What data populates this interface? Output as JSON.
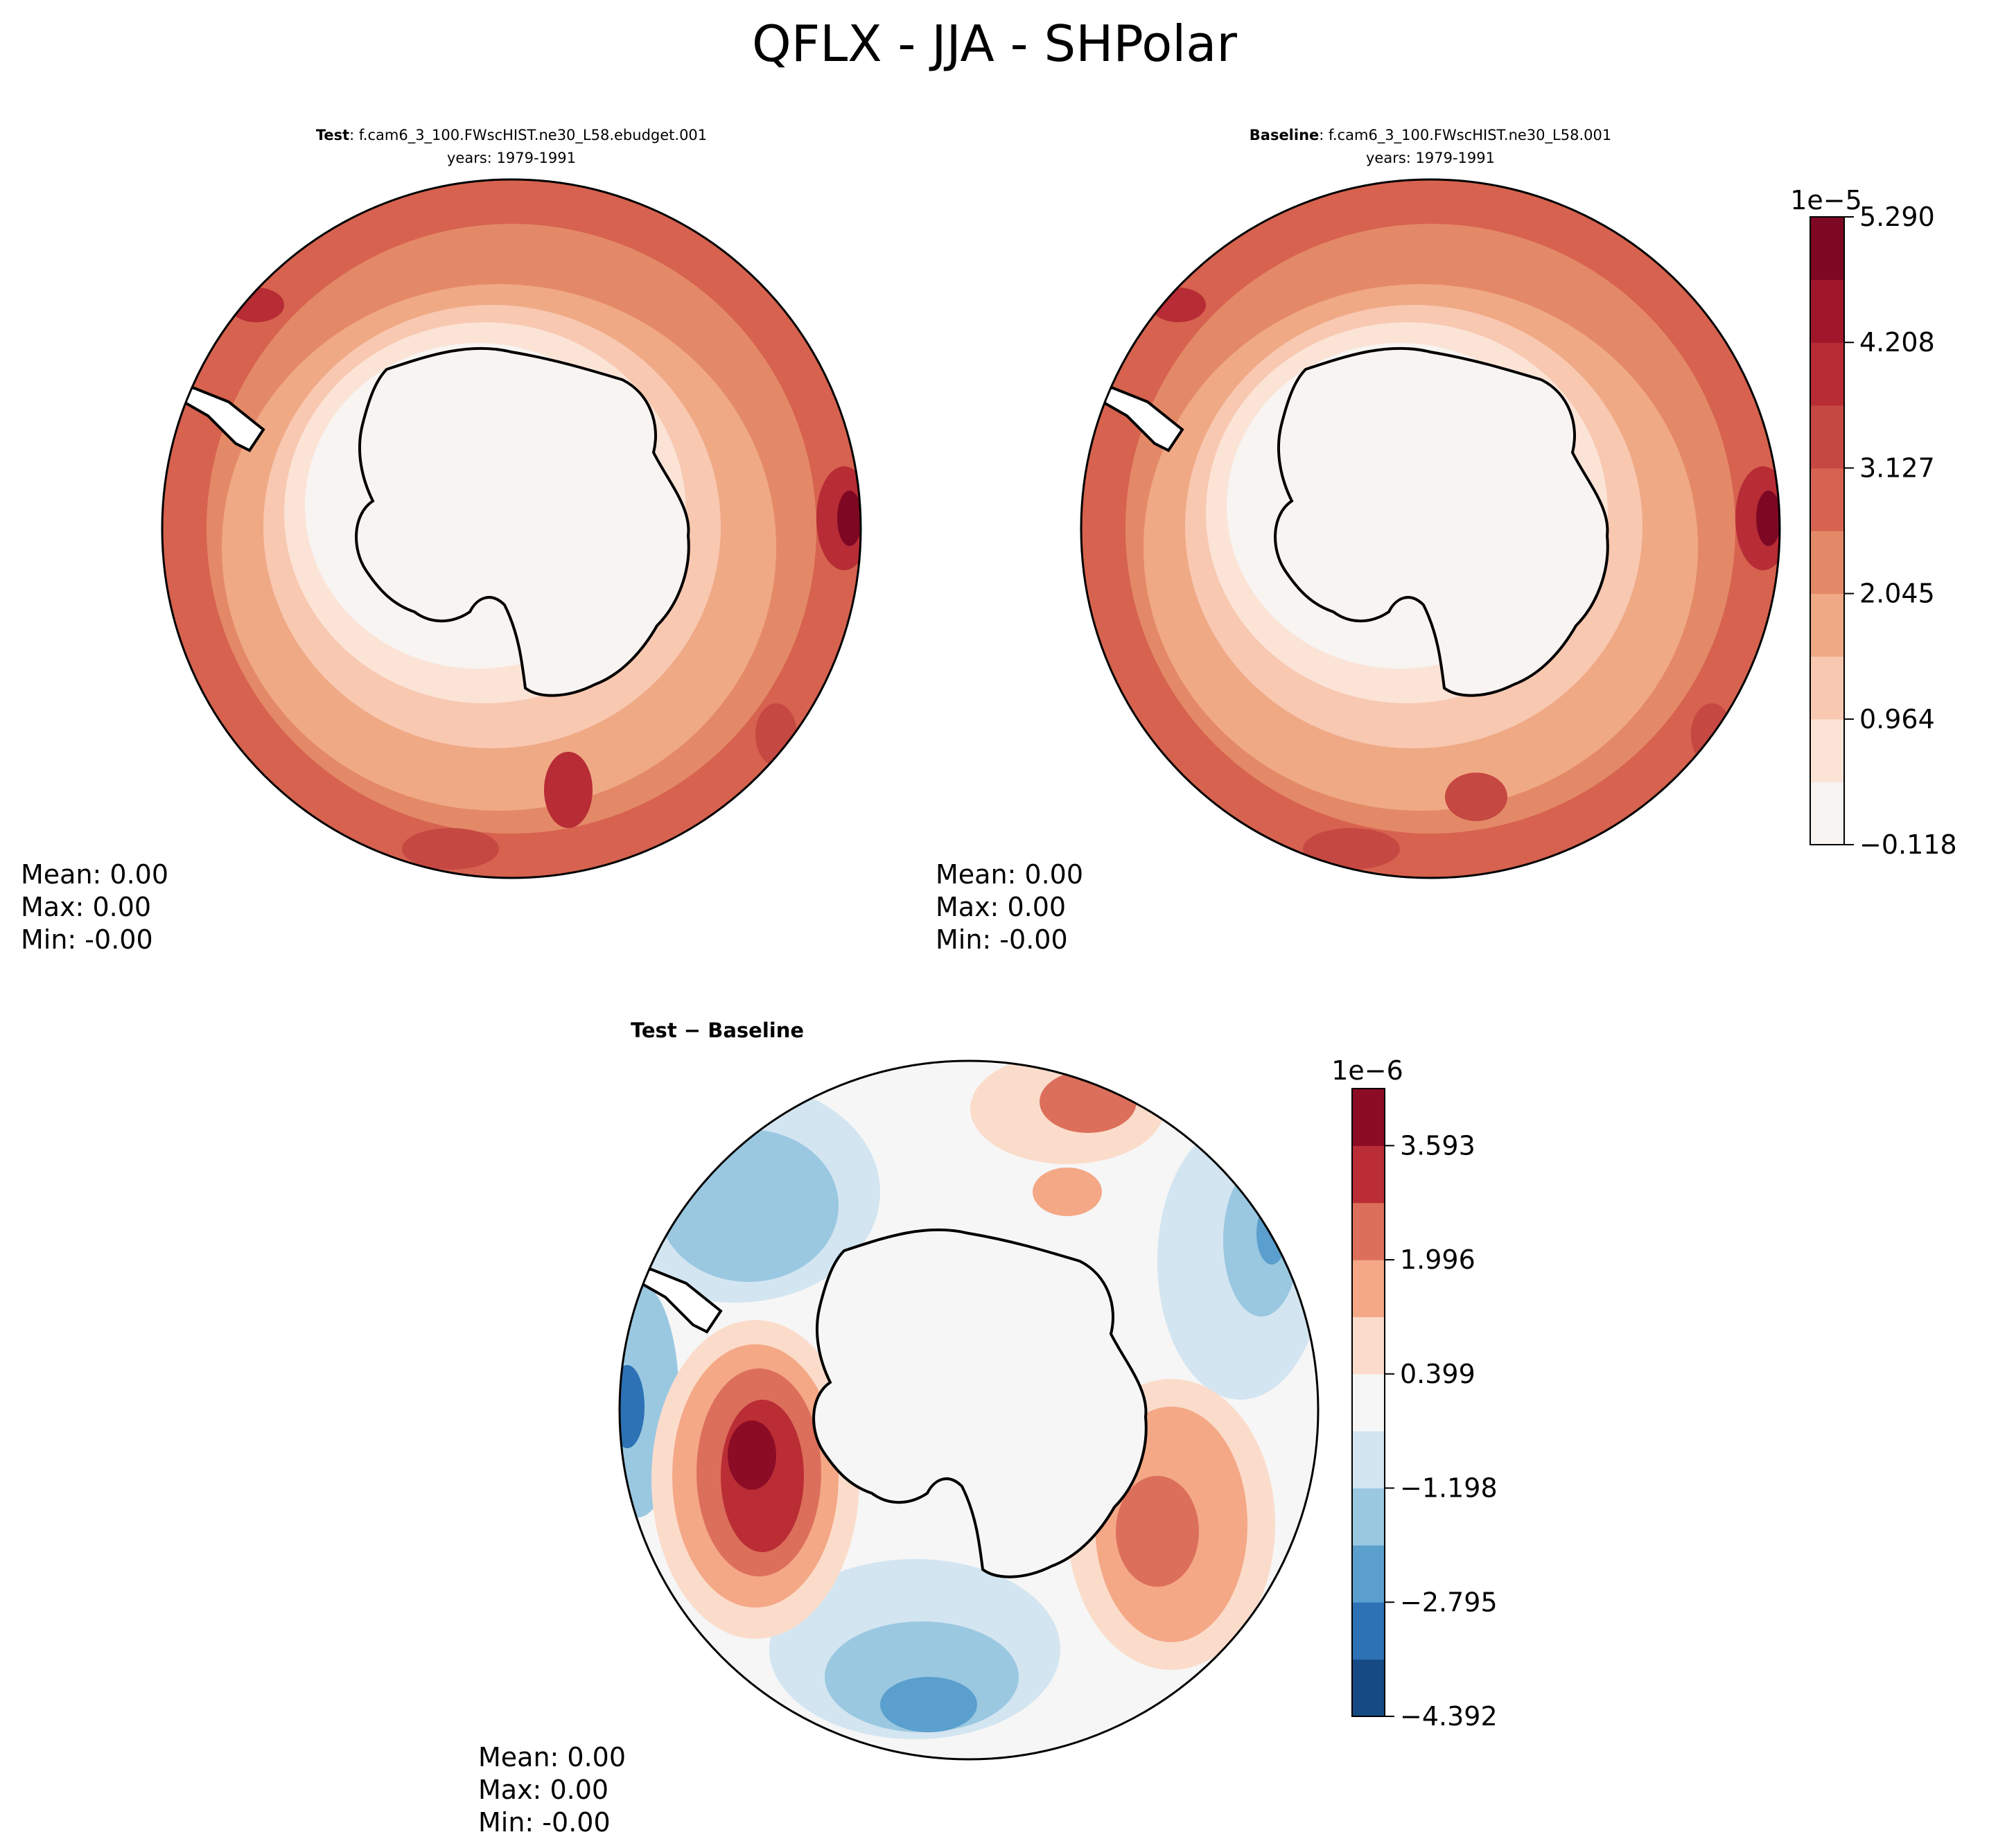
{
  "figure": {
    "title": "QFLX - JJA - SHPolar"
  },
  "panels": [
    {
      "id": "test",
      "title_bold": "Test",
      "title_rest": ": f.cam6_3_100.FWscHIST.ne30_L58.ebudget.001",
      "subtitle": "years: 1979-1991",
      "stats": [
        "Mean:  0.00",
        "Max:  0.00",
        "Min: -0.00"
      ],
      "colorscale": "reds"
    },
    {
      "id": "baseline",
      "title_bold": "Baseline",
      "title_rest": ": f.cam6_3_100.FWscHIST.ne30_L58.001",
      "subtitle": "years: 1979-1991",
      "stats": [
        "Mean:  0.00",
        "Max:  0.00",
        "Min: -0.00"
      ],
      "colorscale": "reds"
    },
    {
      "id": "diff",
      "title_bold": "Test",
      "title_op": "−",
      "title_bold2": "Baseline",
      "stats": [
        "Mean:  0.00",
        "Max:  0.00",
        "Min: -0.00"
      ],
      "colorscale": "diverging"
    }
  ],
  "colorbars": {
    "main": {
      "exponent": "1e−5",
      "ticks": [
        "−0.118",
        "0.964",
        "2.045",
        "3.127",
        "4.208",
        "5.290"
      ],
      "colors": [
        "#f7f4f2",
        "#fbe3d6",
        "#f8c8b1",
        "#f0a985",
        "#e48967",
        "#d6624f",
        "#c64842",
        "#b72c35",
        "#a0172c",
        "#7e0823"
      ]
    },
    "diff": {
      "exponent": "1e−6",
      "ticks": [
        "−4.392",
        "−2.795",
        "−1.198",
        "0.399",
        "1.996",
        "3.593"
      ],
      "colors": [
        "#154a85",
        "#2c72b4",
        "#5a9fcd",
        "#9ac8e1",
        "#d3e5f1",
        "#f6f6f6",
        "#fbdccb",
        "#f4a886",
        "#dc6f5b",
        "#bb2d35",
        "#8c0c25"
      ]
    }
  },
  "chart_data": [
    {
      "type": "heatmap",
      "title": "Test : f.cam6_3_100.FWscHIST.ne30_L58.ebudget.001",
      "subtitle": "years: 1979-1991",
      "variable": "QFLX",
      "season": "JJA",
      "region": "SHPolar",
      "projection": "south-polar-stereographic",
      "colorbar_scale": "1e-5",
      "colorbar_ticks": [
        -0.118,
        0.964,
        2.045,
        3.127,
        4.208,
        5.29
      ],
      "stats": {
        "mean": "0.00",
        "max": "0.00",
        "min": "-0.00"
      }
    },
    {
      "type": "heatmap",
      "title": "Baseline : f.cam6_3_100.FWscHIST.ne30_L58.001",
      "subtitle": "years: 1979-1991",
      "variable": "QFLX",
      "season": "JJA",
      "region": "SHPolar",
      "projection": "south-polar-stereographic",
      "colorbar_scale": "1e-5",
      "colorbar_ticks": [
        -0.118,
        0.964,
        2.045,
        3.127,
        4.208,
        5.29
      ],
      "stats": {
        "mean": "0.00",
        "max": "0.00",
        "min": "-0.00"
      }
    },
    {
      "type": "heatmap",
      "title": "Test − Baseline",
      "variable": "QFLX",
      "season": "JJA",
      "region": "SHPolar",
      "projection": "south-polar-stereographic",
      "colorbar_scale": "1e-6",
      "colorbar_ticks": [
        -4.392,
        -2.795,
        -1.198,
        0.399,
        1.996,
        3.593
      ],
      "stats": {
        "mean": "0.00",
        "max": "0.00",
        "min": "-0.00"
      }
    }
  ]
}
